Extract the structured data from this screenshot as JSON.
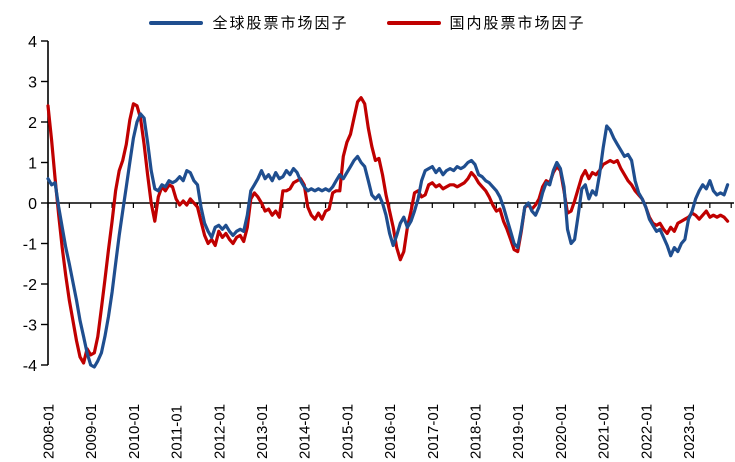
{
  "figure": {
    "background": "#ffffff"
  },
  "legend": {
    "items": [
      {
        "id": "global",
        "label": "全球股票市场因子",
        "color": "#1F4E8F"
      },
      {
        "id": "domestic",
        "label": "国内股票市场因子",
        "color": "#C00000"
      }
    ]
  },
  "chart_data": {
    "type": "line",
    "title": "",
    "xlabel": "",
    "ylabel": "",
    "grid": false,
    "legend_position": "top-center",
    "ylim": [
      -4,
      4
    ],
    "y_ticks": [
      4,
      3,
      2,
      1,
      0,
      -1,
      -2,
      -3,
      -4
    ],
    "x_domain": {
      "start": "2008-01",
      "end": "2023-12",
      "frequency": "monthly"
    },
    "x_tick_labels": [
      "2008-01",
      "2009-01",
      "2010-01",
      "2011-01",
      "2012-01",
      "2013-01",
      "2014-01",
      "2015-01",
      "2016-01",
      "2017-01",
      "2018-01",
      "2019-01",
      "2020-01",
      "2021-01",
      "2022-01",
      "2023-01"
    ],
    "axis_color": "#000000",
    "series": [
      {
        "name": "国内股票市场因子",
        "color": "#C00000",
        "values": [
          2.4,
          1.55,
          0.6,
          -0.3,
          -1.1,
          -1.8,
          -2.4,
          -2.9,
          -3.4,
          -3.8,
          -3.95,
          -3.6,
          -3.75,
          -3.7,
          -3.3,
          -2.6,
          -1.9,
          -1.15,
          -0.45,
          0.3,
          0.8,
          1.05,
          1.45,
          2.05,
          2.45,
          2.4,
          2.1,
          1.45,
          0.7,
          0.0,
          -0.45,
          0.15,
          0.4,
          0.3,
          0.45,
          0.4,
          0.1,
          -0.05,
          0.05,
          -0.05,
          0.1,
          0.0,
          -0.1,
          -0.45,
          -0.8,
          -1.0,
          -0.9,
          -1.05,
          -0.7,
          -0.85,
          -0.75,
          -0.9,
          -1.0,
          -0.85,
          -0.8,
          -0.95,
          -0.6,
          0.1,
          0.25,
          0.15,
          0.0,
          -0.2,
          -0.15,
          -0.3,
          -0.2,
          -0.35,
          0.3,
          0.3,
          0.35,
          0.5,
          0.55,
          0.6,
          0.45,
          -0.1,
          -0.3,
          -0.4,
          -0.25,
          -0.4,
          -0.2,
          -0.15,
          0.25,
          0.3,
          0.3,
          1.15,
          1.5,
          1.7,
          2.1,
          2.5,
          2.6,
          2.45,
          1.85,
          1.4,
          1.05,
          1.1,
          0.7,
          0.2,
          -0.2,
          -0.6,
          -1.1,
          -1.4,
          -1.2,
          -0.6,
          -0.2,
          0.25,
          0.3,
          0.15,
          0.2,
          0.45,
          0.5,
          0.4,
          0.45,
          0.35,
          0.4,
          0.45,
          0.45,
          0.4,
          0.45,
          0.5,
          0.6,
          0.75,
          0.65,
          0.5,
          0.4,
          0.3,
          0.15,
          -0.05,
          -0.2,
          -0.15,
          -0.45,
          -0.65,
          -0.9,
          -1.15,
          -1.2,
          -0.7,
          -0.1,
          -0.05,
          -0.15,
          -0.05,
          0.1,
          0.4,
          0.55,
          0.5,
          0.75,
          0.9,
          0.8,
          0.3,
          -0.25,
          -0.2,
          0.05,
          0.35,
          0.65,
          0.8,
          0.6,
          0.75,
          0.7,
          0.8,
          0.95,
          1.0,
          1.05,
          1.0,
          1.05,
          0.85,
          0.7,
          0.55,
          0.45,
          0.3,
          0.2,
          0.1,
          -0.1,
          -0.35,
          -0.5,
          -0.55,
          -0.5,
          -0.65,
          -0.75,
          -0.6,
          -0.7,
          -0.5,
          -0.45,
          -0.4,
          -0.35,
          -0.25,
          -0.3,
          -0.4,
          -0.3,
          -0.2,
          -0.35,
          -0.3,
          -0.35,
          -0.3,
          -0.35,
          -0.45
        ]
      },
      {
        "name": "全球股票市场因子",
        "color": "#1F4E8F",
        "values": [
          0.6,
          0.45,
          0.5,
          -0.1,
          -0.6,
          -1.1,
          -1.5,
          -1.95,
          -2.4,
          -2.9,
          -3.3,
          -3.7,
          -4.0,
          -4.05,
          -3.9,
          -3.7,
          -3.3,
          -2.8,
          -2.2,
          -1.5,
          -0.8,
          -0.2,
          0.4,
          1.0,
          1.6,
          2.0,
          2.2,
          2.1,
          1.5,
          0.8,
          0.35,
          0.3,
          0.45,
          0.4,
          0.55,
          0.5,
          0.55,
          0.65,
          0.55,
          0.8,
          0.75,
          0.55,
          0.45,
          -0.1,
          -0.5,
          -0.7,
          -0.85,
          -0.6,
          -0.55,
          -0.65,
          -0.55,
          -0.7,
          -0.8,
          -0.7,
          -0.65,
          -0.7,
          -0.3,
          0.3,
          0.45,
          0.6,
          0.8,
          0.6,
          0.7,
          0.55,
          0.75,
          0.6,
          0.65,
          0.8,
          0.7,
          0.85,
          0.75,
          0.55,
          0.4,
          0.3,
          0.35,
          0.3,
          0.35,
          0.3,
          0.35,
          0.3,
          0.4,
          0.55,
          0.7,
          0.6,
          0.75,
          0.9,
          1.05,
          1.15,
          1.0,
          0.9,
          0.55,
          0.2,
          0.1,
          0.2,
          0.0,
          -0.3,
          -0.75,
          -1.05,
          -0.8,
          -0.5,
          -0.35,
          -0.6,
          -0.45,
          -0.2,
          0.1,
          0.55,
          0.8,
          0.85,
          0.9,
          0.75,
          0.85,
          0.7,
          0.8,
          0.85,
          0.8,
          0.9,
          0.85,
          0.9,
          1.0,
          1.05,
          0.95,
          0.7,
          0.65,
          0.55,
          0.5,
          0.4,
          0.3,
          0.15,
          -0.1,
          -0.4,
          -0.7,
          -1.0,
          -1.1,
          -0.65,
          -0.1,
          0.0,
          -0.2,
          -0.3,
          -0.1,
          0.25,
          0.5,
          0.45,
          0.8,
          1.0,
          0.85,
          0.4,
          -0.65,
          -1.0,
          -0.9,
          -0.3,
          0.35,
          0.45,
          0.1,
          0.3,
          0.2,
          0.7,
          1.35,
          1.9,
          1.8,
          1.6,
          1.45,
          1.3,
          1.15,
          1.2,
          1.05,
          0.55,
          0.25,
          0.1,
          -0.1,
          -0.4,
          -0.55,
          -0.7,
          -0.65,
          -0.85,
          -1.05,
          -1.3,
          -1.1,
          -1.2,
          -1.0,
          -0.9,
          -0.4,
          -0.2,
          0.1,
          0.3,
          0.45,
          0.35,
          0.55,
          0.3,
          0.2,
          0.25,
          0.2,
          0.45
        ]
      }
    ]
  }
}
